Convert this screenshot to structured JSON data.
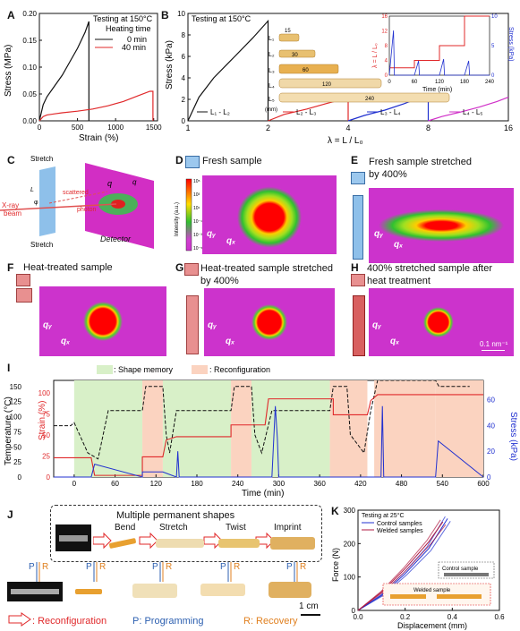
{
  "panels": {
    "A": "A",
    "B": "B",
    "C": "C",
    "D": "D",
    "E": "E",
    "F": "F",
    "G": "G",
    "H": "H",
    "I": "I",
    "J": "J",
    "K": "K"
  },
  "colors": {
    "black": "#111111",
    "red": "#e0282a",
    "blue": "#2030d0",
    "magenta": "#d030c8",
    "green_fill": "#d8f0c8",
    "pink_fill": "#fbd3c0",
    "scatter_bg": "#cc33cc"
  },
  "A": {
    "note": "Testing at 150°C",
    "legend_title": "Heating time",
    "legend": [
      "0 min",
      "40 min"
    ],
    "ylabel": "Stress (MPa)",
    "xlabel": "Strain (%)",
    "yticks": [
      "0.00",
      "0.05",
      "0.10",
      "0.15",
      "0.20"
    ],
    "xticks": [
      "0",
      "500",
      "1000",
      "1500"
    ]
  },
  "B": {
    "note": "Testing at 150°C",
    "ylabel": "Stress (kPa)",
    "xlabel": "λ = L / L₀",
    "yticks": [
      "0",
      "2",
      "4",
      "6",
      "8",
      "10"
    ],
    "xticks": [
      "1",
      "2",
      "4",
      "8",
      "16"
    ],
    "segments": [
      "L₁ - L₂",
      "L₂ - L₃",
      "L₃ - L₄",
      "L₄ - L₅"
    ],
    "samples": [
      {
        "label": "L₁",
        "len": "15"
      },
      {
        "label": "L₂",
        "len": "30"
      },
      {
        "label": "L₃",
        "len": "60"
      },
      {
        "label": "L₄",
        "len": "120"
      },
      {
        "label": "L₅",
        "len": "240"
      }
    ],
    "unit": "(mm)",
    "inset": {
      "ylabel_left": "λ = L / L₀",
      "ylabel_right": "Stress (kPa)",
      "xlabel": "Time (min)",
      "left_ticks": [
        "0",
        "4",
        "8",
        "12",
        "16"
      ],
      "right_ticks": [
        "0",
        "5",
        "10"
      ],
      "xticks": [
        "0",
        "60",
        "120",
        "180",
        "240"
      ]
    }
  },
  "C": {
    "stretch_top": "Stretch",
    "stretch_bottom": "Stretch",
    "xray": "X-ray\nbeam",
    "scattered": "scattered",
    "photon": "photon",
    "detector": "Detector",
    "q": "q",
    "qx": "q",
    "qy": "q",
    "phi": "φ",
    "L": "L"
  },
  "D": {
    "title": "Fresh sample",
    "cbar_label": "Intensity (a.u.)",
    "cbar_ticks": [
      "10⁵",
      "10³",
      "10¹",
      "10⁻¹",
      "10⁻³",
      "10⁻⁵"
    ],
    "qy": "qᵧ",
    "qx": "qₓ"
  },
  "E": {
    "title": "Fresh sample stretched by 400%",
    "qy": "qᵧ",
    "qx": "qₓ"
  },
  "F": {
    "title": "Heat-treated sample",
    "qy": "qᵧ",
    "qx": "qₓ"
  },
  "G": {
    "title": "Heat-treated sample stretched by 400%",
    "qy": "qᵧ",
    "qx": "qₓ"
  },
  "H": {
    "title": "400% stretched sample after heat treatment",
    "qy": "qᵧ",
    "qx": "qₓ",
    "scale": "0.1 nm⁻¹"
  },
  "I": {
    "legend_green": ": Shape memory",
    "legend_pink": ": Reconfiguration",
    "ylabel_left": "Temperature (°C)",
    "ylabel_strain": "Strain (%)",
    "ylabel_right": "Stress (kPa)",
    "xlabel": "Time (min)",
    "temp_ticks": [
      "0",
      "25",
      "50",
      "75",
      "100",
      "125",
      "150"
    ],
    "strain_ticks": [
      "0",
      "25",
      "50",
      "75",
      "100"
    ],
    "stress_ticks": [
      "0",
      "20",
      "40",
      "60"
    ],
    "xticks": [
      "0",
      "60",
      "120",
      "180",
      "240",
      "300",
      "360",
      "420",
      "480",
      "540",
      "600"
    ]
  },
  "J": {
    "title": "Multiple permanent shapes",
    "steps": [
      "Bend",
      "Stretch",
      "Twist",
      "Imprint"
    ],
    "p": "P",
    "r": "R",
    "legend_reconfig": ": Reconfiguration",
    "legend_prog": "P: Programming",
    "legend_rec": "R: Recovery",
    "scale": "1 cm"
  },
  "K": {
    "note": "Testing at 25°C",
    "legend": [
      "Control samples",
      "Welded samples"
    ],
    "ylabel": "Force (N)",
    "xlabel": "Displacement (mm)",
    "yticks": [
      "0",
      "100",
      "200",
      "300"
    ],
    "xticks": [
      "0.0",
      "0.2",
      "0.4",
      "0.6"
    ],
    "inset_control": "Control sample",
    "inset_welded": "Welded sample"
  },
  "chart_data": [
    {
      "id": "A",
      "type": "line",
      "xlabel": "Strain (%)",
      "ylabel": "Stress (MPa)",
      "xlim": [
        0,
        1550
      ],
      "ylim": [
        0,
        0.2
      ],
      "series": [
        {
          "name": "0 min",
          "x": [
            0,
            50,
            100,
            200,
            300,
            400,
            500,
            600,
            650,
            650
          ],
          "y": [
            0,
            0.03,
            0.045,
            0.065,
            0.085,
            0.11,
            0.135,
            0.165,
            0.185,
            0
          ]
        },
        {
          "name": "40 min",
          "x": [
            0,
            50,
            100,
            200,
            300,
            500,
            700,
            900,
            1100,
            1300,
            1450,
            1490,
            1490
          ],
          "y": [
            0,
            0.008,
            0.011,
            0.013,
            0.015,
            0.018,
            0.022,
            0.028,
            0.036,
            0.047,
            0.055,
            0.055,
            0
          ]
        }
      ]
    },
    {
      "id": "B",
      "type": "line",
      "xlabel": "λ = L / L₀",
      "ylabel": "Stress (kPa)",
      "xscale": "log2",
      "xlim": [
        1,
        16
      ],
      "ylim": [
        0,
        10
      ],
      "series": [
        {
          "name": "L₁ - L₂",
          "x": [
            1,
            1.1,
            1.25,
            1.5,
            1.75,
            2,
            2
          ],
          "y": [
            0,
            2.2,
            4.0,
            6.0,
            7.7,
            9.3,
            0
          ]
        },
        {
          "name": "L₂ - L₃",
          "x": [
            2,
            2.3,
            2.8,
            3.3,
            3.8,
            4,
            4
          ],
          "y": [
            0,
            0.6,
            1.1,
            1.6,
            2.0,
            2.2,
            0
          ]
        },
        {
          "name": "L₃ - L₄",
          "x": [
            4,
            4.6,
            5.5,
            6.5,
            7.5,
            8,
            8
          ],
          "y": [
            0,
            0.5,
            1.0,
            1.6,
            2.2,
            2.5,
            0
          ]
        },
        {
          "name": "L₄ - L₅",
          "x": [
            8,
            9,
            10.5,
            12.5,
            14.5,
            16
          ],
          "y": [
            0,
            0.4,
            0.8,
            1.3,
            1.8,
            2.2
          ]
        }
      ]
    },
    {
      "id": "I",
      "type": "line",
      "xlabel": "Time (min)",
      "xlim": [
        -30,
        600
      ],
      "series": [
        {
          "name": "Temperature",
          "x": [
            -30,
            -5,
            0,
            20,
            35,
            50,
            100,
            105,
            130,
            135,
            140,
            150,
            230,
            235,
            260,
            265,
            275,
            290,
            375,
            380,
            400,
            405,
            425,
            435,
            445,
            450,
            455,
            530,
            535,
            540,
            580
          ],
          "y": [
            85,
            85,
            90,
            40,
            30,
            110,
            110,
            150,
            150,
            70,
            40,
            110,
            110,
            150,
            150,
            70,
            40,
            110,
            110,
            150,
            150,
            70,
            40,
            110,
            160,
            160,
            160,
            160,
            150,
            150,
            150
          ]
        },
        {
          "name": "Strain",
          "x": [
            -30,
            0,
            25,
            30,
            100,
            100,
            130,
            135,
            150,
            230,
            230,
            280,
            285,
            380,
            380,
            430,
            435,
            445,
            460,
            530,
            530,
            600
          ],
          "y": [
            23,
            23,
            23,
            2,
            2,
            24,
            24,
            44,
            48,
            48,
            62,
            62,
            93,
            93,
            74,
            74,
            91,
            98,
            98,
            98,
            98,
            98
          ]
        },
        {
          "name": "Stress",
          "x": [
            -30,
            25,
            30,
            100,
            100,
            130,
            150,
            152,
            154,
            230,
            290,
            295,
            298,
            300,
            375,
            440,
            450,
            452,
            454,
            530,
            534,
            600
          ],
          "y": [
            0,
            0,
            10,
            0,
            4,
            4,
            0,
            20,
            0,
            0,
            0,
            55,
            30,
            0,
            0,
            0,
            0,
            55,
            0,
            0,
            28,
            0
          ]
        }
      ]
    },
    {
      "id": "K",
      "type": "line",
      "xlabel": "Displacement (mm)",
      "ylabel": "Force (N)",
      "xlim": [
        0,
        0.6
      ],
      "ylim": [
        0,
        300
      ],
      "series": [
        {
          "name": "Control samples",
          "x": [
            0,
            0.1,
            0.2,
            0.3,
            0.38
          ],
          "y": [
            0,
            45,
            110,
            185,
            275
          ]
        },
        {
          "name": "Welded samples",
          "x": [
            0,
            0.1,
            0.2,
            0.3,
            0.36
          ],
          "y": [
            0,
            55,
            125,
            205,
            265
          ]
        }
      ]
    }
  ]
}
